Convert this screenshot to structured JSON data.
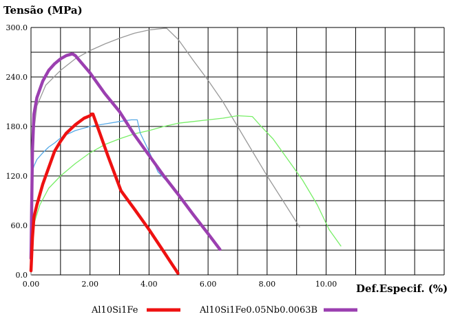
{
  "chart_data": {
    "type": "line",
    "ylabel": "Tensão (MPa)",
    "xlabel": "Def.Especif. (%)",
    "xlim": [
      0,
      14
    ],
    "ylim": [
      0,
      300
    ],
    "x_grid_step": 1,
    "y_grid_step": 30,
    "x_ticks": [
      0,
      2,
      4,
      6,
      8,
      10
    ],
    "x_tick_labels": [
      "0.00",
      "2.00",
      "4.00",
      "6.00",
      "8.00",
      "10.00"
    ],
    "y_ticks": [
      0,
      60,
      120,
      180,
      240,
      300
    ],
    "y_tick_labels": [
      "0.0",
      "60.0",
      "120.0",
      "180.0",
      "240.0",
      "300.0"
    ],
    "grid": true,
    "legend_position": "bottom",
    "series": [
      {
        "name": "Al10Si1Fe",
        "color": "#ee1111",
        "in_legend": true,
        "points": [
          [
            0,
            5
          ],
          [
            0.05,
            45
          ],
          [
            0.1,
            70
          ],
          [
            0.2,
            85
          ],
          [
            0.4,
            110
          ],
          [
            0.6,
            130
          ],
          [
            0.8,
            150
          ],
          [
            1.0,
            162
          ],
          [
            1.2,
            172
          ],
          [
            1.5,
            182
          ],
          [
            1.8,
            190
          ],
          [
            2.0,
            193
          ],
          [
            2.05,
            195
          ],
          [
            2.1,
            195
          ],
          [
            2.3,
            175
          ],
          [
            2.6,
            145
          ],
          [
            3.05,
            102
          ],
          [
            3.5,
            80
          ],
          [
            4.0,
            55
          ],
          [
            4.5,
            28
          ],
          [
            4.98,
            2
          ]
        ]
      },
      {
        "name": "Al10Si1Fe0.05Nb0.0063B",
        "color": "#9b3fb0",
        "in_legend": true,
        "points": [
          [
            0,
            20
          ],
          [
            0.05,
            150
          ],
          [
            0.1,
            195
          ],
          [
            0.2,
            215
          ],
          [
            0.4,
            235
          ],
          [
            0.6,
            248
          ],
          [
            0.8,
            256
          ],
          [
            1.0,
            262
          ],
          [
            1.2,
            266
          ],
          [
            1.4,
            268
          ],
          [
            1.5,
            266
          ],
          [
            2.0,
            245
          ],
          [
            2.5,
            220
          ],
          [
            3.0,
            198
          ],
          [
            3.5,
            170
          ],
          [
            4.0,
            145
          ],
          [
            4.5,
            120
          ],
          [
            5.0,
            97
          ],
          [
            5.5,
            73
          ],
          [
            6.0,
            50
          ],
          [
            6.4,
            31
          ]
        ]
      },
      {
        "color": "#999999",
        "in_legend": false,
        "points": [
          [
            0,
            0
          ],
          [
            0.05,
            100
          ],
          [
            0.1,
            175
          ],
          [
            0.2,
            205
          ],
          [
            0.5,
            230
          ],
          [
            1.0,
            248
          ],
          [
            1.5,
            262
          ],
          [
            2.0,
            272
          ],
          [
            2.5,
            280
          ],
          [
            3.0,
            287
          ],
          [
            3.5,
            293
          ],
          [
            4.0,
            297
          ],
          [
            4.5,
            299
          ],
          [
            4.6,
            299
          ],
          [
            5.0,
            285
          ],
          [
            5.5,
            260
          ],
          [
            6.0,
            236
          ],
          [
            6.5,
            210
          ],
          [
            7.0,
            180
          ],
          [
            7.5,
            150
          ],
          [
            8.0,
            120
          ],
          [
            8.5,
            92
          ],
          [
            9.1,
            58
          ]
        ]
      },
      {
        "color": "#55a8e6",
        "in_legend": false,
        "points": [
          [
            0,
            90
          ],
          [
            0.05,
            125
          ],
          [
            0.1,
            132
          ],
          [
            0.2,
            140
          ],
          [
            0.4,
            148
          ],
          [
            0.6,
            155
          ],
          [
            0.8,
            160
          ],
          [
            1.0,
            166
          ],
          [
            1.2,
            170
          ],
          [
            1.5,
            175
          ],
          [
            2.0,
            180
          ],
          [
            2.5,
            183
          ],
          [
            3.0,
            186
          ],
          [
            3.4,
            188
          ],
          [
            3.6,
            188
          ],
          [
            3.7,
            172
          ],
          [
            4.0,
            150
          ],
          [
            4.3,
            125
          ],
          [
            4.7,
            110
          ]
        ]
      },
      {
        "color": "#77ee66",
        "in_legend": false,
        "points": [
          [
            0,
            20
          ],
          [
            0.05,
            45
          ],
          [
            0.1,
            62
          ],
          [
            0.3,
            85
          ],
          [
            0.6,
            105
          ],
          [
            1.0,
            120
          ],
          [
            1.5,
            135
          ],
          [
            2.0,
            148
          ],
          [
            2.5,
            158
          ],
          [
            3.0,
            165
          ],
          [
            3.5,
            171
          ],
          [
            4.0,
            175
          ],
          [
            4.5,
            180
          ],
          [
            5.0,
            184
          ],
          [
            5.5,
            186
          ],
          [
            6.0,
            188
          ],
          [
            6.5,
            190
          ],
          [
            7.0,
            193
          ],
          [
            7.5,
            192
          ],
          [
            7.8,
            180
          ],
          [
            8.2,
            165
          ],
          [
            8.7,
            140
          ],
          [
            9.2,
            115
          ],
          [
            9.7,
            85
          ],
          [
            10.1,
            55
          ],
          [
            10.5,
            35
          ]
        ]
      }
    ]
  }
}
